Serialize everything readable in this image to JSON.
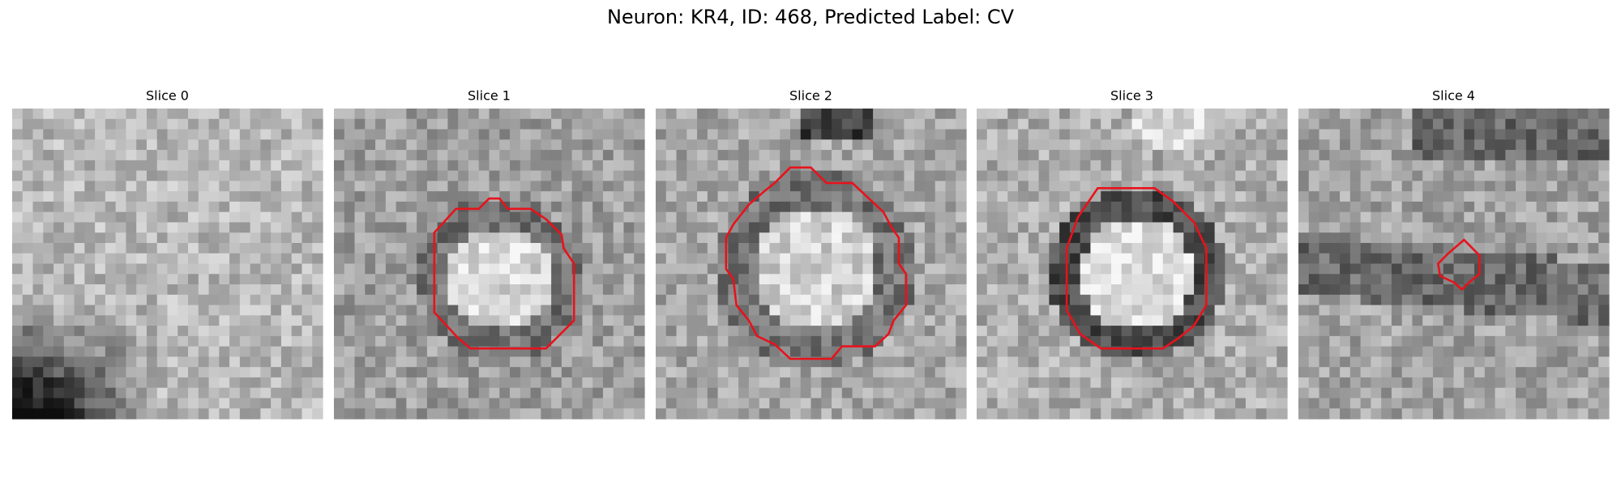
{
  "title": "Neuron: KR4, ID: 468, Predicted Label: CV",
  "panels": [
    {
      "title": "Slice 0"
    },
    {
      "title": "Slice 1"
    },
    {
      "title": "Slice 2"
    },
    {
      "title": "Slice 3"
    },
    {
      "title": "Slice 4"
    }
  ]
}
